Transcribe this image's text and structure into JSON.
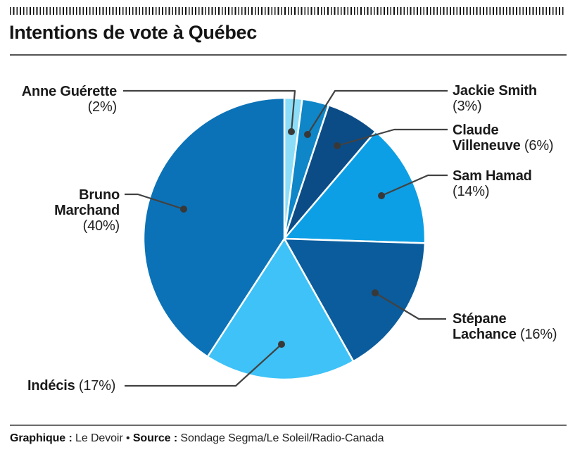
{
  "page": {
    "title": "Intentions de vote à Québec"
  },
  "chart_data": {
    "type": "pie",
    "title": "Intentions de vote à Québec",
    "unit": "%",
    "order": "clockwise-from-top",
    "legend_position": "outside-callouts",
    "slices": [
      {
        "id": "anne-guerette",
        "name": "Anne Guérette",
        "value": 2,
        "pct_label": "(2%)",
        "color": "#8CDDF8",
        "label_lines": [
          [
            {
              "t": "Anne Guérette",
              "b": true
            }
          ],
          [
            {
              "t": "(2%)",
              "b": false
            }
          ]
        ]
      },
      {
        "id": "jackie-smith",
        "name": "Jackie Smith",
        "value": 3,
        "pct_label": "(3%)",
        "color": "#0E86C8",
        "label_lines": [
          [
            {
              "t": "Jackie Smith",
              "b": true
            }
          ],
          [
            {
              "t": "(3%)",
              "b": false
            }
          ]
        ]
      },
      {
        "id": "claude-villeneuve",
        "name": "Claude Villeneuve",
        "value": 6,
        "pct_label": "(6%)",
        "color": "#0B4C87",
        "label_lines": [
          [
            {
              "t": "Claude",
              "b": true
            }
          ],
          [
            {
              "t": "Villeneuve",
              "b": true
            },
            {
              "t": " (6%)",
              "b": false
            }
          ]
        ]
      },
      {
        "id": "sam-hamad",
        "name": "Sam Hamad",
        "value": 14,
        "pct_label": "(14%)",
        "color": "#0C9FE5",
        "label_lines": [
          [
            {
              "t": "Sam Hamad",
              "b": true
            }
          ],
          [
            {
              "t": "(14%)",
              "b": false
            }
          ]
        ]
      },
      {
        "id": "stepane-lachance",
        "name": "Stépane Lachance",
        "value": 16,
        "pct_label": "(16%)",
        "color": "#0A5C9C",
        "label_lines": [
          [
            {
              "t": "Stépane",
              "b": true
            }
          ],
          [
            {
              "t": "Lachance",
              "b": true
            },
            {
              "t": " (16%)",
              "b": false
            }
          ]
        ]
      },
      {
        "id": "indecis",
        "name": "Indécis",
        "value": 17,
        "pct_label": "(17%)",
        "color": "#3EC2F7",
        "label_lines": [
          [
            {
              "t": "Indécis",
              "b": true
            },
            {
              "t": " (17%)",
              "b": false
            }
          ]
        ]
      },
      {
        "id": "bruno-marchand",
        "name": "Bruno Marchand",
        "value": 40,
        "pct_label": "(40%)",
        "color": "#0B72B7",
        "label_lines": [
          [
            {
              "t": "Bruno",
              "b": true
            }
          ],
          [
            {
              "t": "Marchand",
              "b": true
            }
          ],
          [
            {
              "t": "(40%)",
              "b": false
            }
          ]
        ]
      }
    ],
    "callout_colors": {
      "leader_line": "#424242",
      "leader_dot": "#383838",
      "slice_separator": "#ffffff"
    }
  },
  "footer": {
    "segments": [
      {
        "text": "Graphique :",
        "bold": true
      },
      {
        "text": " Le Devoir ",
        "bold": false
      },
      {
        "text": "• ",
        "bold": false
      },
      {
        "text": "Source :",
        "bold": true
      },
      {
        "text": " Sondage Segma/Le Soleil/Radio-Canada",
        "bold": false
      }
    ]
  }
}
